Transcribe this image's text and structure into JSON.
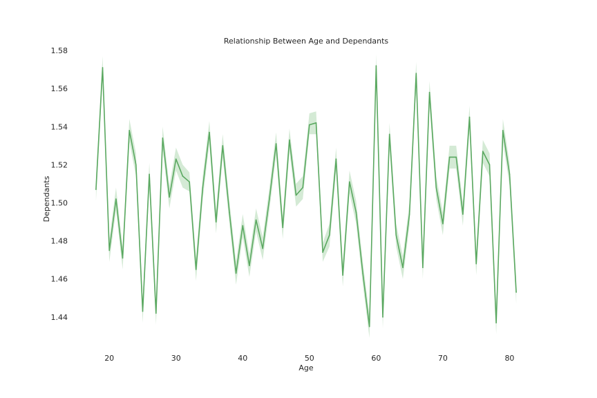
{
  "chart_data": {
    "type": "line",
    "title": "Relationship Between Age and Dependants",
    "xlabel": "Age",
    "ylabel": "Dependants",
    "xlim": [
      14.8,
      84.2
    ],
    "ylim": [
      1.4225,
      1.5815
    ],
    "xticks": [
      20,
      30,
      40,
      50,
      60,
      70,
      80
    ],
    "yticks": [
      1.44,
      1.46,
      1.48,
      1.5,
      1.52,
      1.54,
      1.56,
      1.58
    ],
    "ytick_labels": [
      "1.44",
      "1.46",
      "1.48",
      "1.50",
      "1.52",
      "1.54",
      "1.56",
      "1.58"
    ],
    "grid": false,
    "line_color": "#5aa860",
    "band_color": "#b7dcb9",
    "series": [
      {
        "x": [
          18,
          19,
          20,
          21,
          22,
          23,
          24,
          25,
          26,
          27,
          28,
          29,
          30,
          31,
          32,
          33,
          34,
          35,
          36,
          37,
          38,
          39,
          40,
          41,
          42,
          43,
          44,
          45,
          46,
          47,
          48,
          49,
          50,
          51,
          52,
          53,
          54,
          55,
          56,
          57,
          58,
          59,
          60,
          61,
          62,
          63,
          64,
          65,
          66,
          67,
          68,
          69,
          70,
          71,
          72,
          73,
          74,
          75,
          76,
          77,
          78,
          79,
          80,
          81
        ],
        "y": [
          1.507,
          1.571,
          1.475,
          1.502,
          1.471,
          1.538,
          1.52,
          1.443,
          1.515,
          1.442,
          1.534,
          1.503,
          1.523,
          1.514,
          1.511,
          1.465,
          1.508,
          1.537,
          1.49,
          1.53,
          1.495,
          1.463,
          1.488,
          1.467,
          1.491,
          1.476,
          1.502,
          1.531,
          1.487,
          1.533,
          1.504,
          1.508,
          1.541,
          1.542,
          1.474,
          1.483,
          1.523,
          1.462,
          1.511,
          1.495,
          1.463,
          1.435,
          1.572,
          1.44,
          1.536,
          1.483,
          1.466,
          1.494,
          1.568,
          1.466,
          1.558,
          1.508,
          1.489,
          1.524,
          1.524,
          1.494,
          1.545,
          1.468,
          1.527,
          1.52,
          1.437,
          1.538,
          1.515,
          1.453
        ],
        "ci_lower": [
          1.501,
          1.565,
          1.469,
          1.496,
          1.465,
          1.532,
          1.514,
          1.437,
          1.509,
          1.436,
          1.528,
          1.497,
          1.517,
          1.508,
          1.506,
          1.459,
          1.502,
          1.531,
          1.484,
          1.524,
          1.489,
          1.457,
          1.482,
          1.461,
          1.485,
          1.47,
          1.496,
          1.525,
          1.481,
          1.527,
          1.498,
          1.502,
          1.536,
          1.536,
          1.469,
          1.477,
          1.517,
          1.456,
          1.505,
          1.489,
          1.457,
          1.429,
          1.566,
          1.434,
          1.53,
          1.477,
          1.46,
          1.488,
          1.562,
          1.46,
          1.552,
          1.502,
          1.483,
          1.518,
          1.518,
          1.488,
          1.539,
          1.462,
          1.521,
          1.514,
          1.431,
          1.532,
          1.509,
          1.447
        ],
        "ci_upper": [
          1.513,
          1.577,
          1.481,
          1.508,
          1.477,
          1.544,
          1.526,
          1.449,
          1.521,
          1.448,
          1.54,
          1.509,
          1.529,
          1.52,
          1.516,
          1.471,
          1.514,
          1.543,
          1.496,
          1.536,
          1.501,
          1.469,
          1.494,
          1.473,
          1.497,
          1.482,
          1.508,
          1.537,
          1.493,
          1.539,
          1.51,
          1.514,
          1.547,
          1.548,
          1.479,
          1.489,
          1.529,
          1.468,
          1.517,
          1.501,
          1.469,
          1.441,
          1.578,
          1.446,
          1.542,
          1.489,
          1.472,
          1.5,
          1.574,
          1.472,
          1.564,
          1.514,
          1.495,
          1.53,
          1.53,
          1.5,
          1.551,
          1.474,
          1.533,
          1.526,
          1.443,
          1.544,
          1.521,
          1.459
        ]
      }
    ]
  }
}
